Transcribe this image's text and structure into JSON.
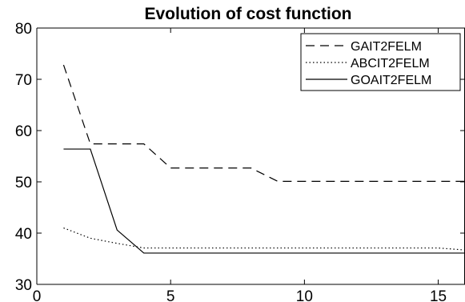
{
  "chart_data": {
    "type": "line",
    "title": "Evolution of cost function",
    "xlabel": "",
    "ylabel": "",
    "xlim": [
      0,
      16
    ],
    "ylim": [
      30,
      80
    ],
    "xticks": [
      0,
      5,
      10,
      15
    ],
    "yticks": [
      30,
      40,
      50,
      60,
      70,
      80
    ],
    "grid": false,
    "legend_position": "top-right",
    "series": [
      {
        "name": "GAIT2FELM",
        "line_style": "dashed",
        "color": "#000000",
        "x": [
          1,
          2,
          3,
          4,
          5,
          6,
          7,
          8,
          9,
          10,
          11,
          12,
          13,
          14,
          15,
          16
        ],
        "y": [
          72.8,
          57.4,
          57.4,
          57.4,
          52.7,
          52.7,
          52.7,
          52.7,
          50.1,
          50.1,
          50.1,
          50.1,
          50.1,
          50.1,
          50.1,
          50.1
        ]
      },
      {
        "name": "ABCIT2FELM",
        "line_style": "dotted",
        "color": "#000000",
        "x": [
          1,
          2,
          3,
          4,
          5,
          6,
          7,
          8,
          9,
          10,
          11,
          12,
          13,
          14,
          15,
          16
        ],
        "y": [
          41.0,
          39.0,
          38.0,
          37.1,
          37.1,
          37.1,
          37.1,
          37.1,
          37.1,
          37.1,
          37.1,
          37.1,
          37.1,
          37.1,
          37.1,
          36.7
        ]
      },
      {
        "name": "GOAIT2FELM",
        "line_style": "solid",
        "color": "#000000",
        "x": [
          1,
          2,
          3,
          4,
          5,
          6,
          7,
          8,
          9,
          10,
          11,
          12,
          13,
          14,
          15,
          16
        ],
        "y": [
          56.4,
          56.4,
          40.6,
          36.1,
          36.1,
          36.1,
          36.1,
          36.1,
          36.1,
          36.1,
          36.1,
          36.1,
          36.1,
          36.1,
          36.1,
          36.1
        ]
      }
    ]
  }
}
